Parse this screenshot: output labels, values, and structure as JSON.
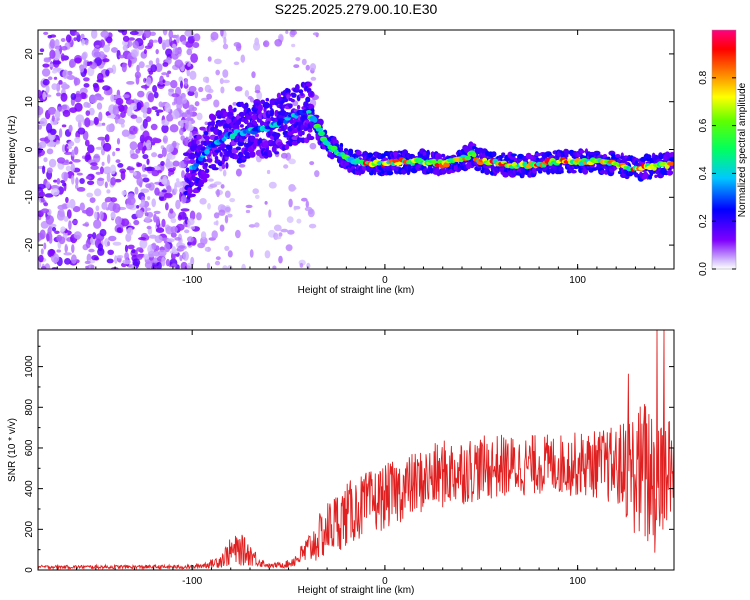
{
  "figure_title": "S225.2025.279.00.10.E30",
  "colormap_label": "Normalized spectral amplitude",
  "chart_data": [
    {
      "type": "heatmap",
      "title": "S225.2025.279.00.10.E30",
      "xlabel": "Height of straight line (km)",
      "ylabel": "Frequency (Hz)",
      "xlim": [
        -180,
        150
      ],
      "ylim": [
        -25,
        25
      ],
      "x_ticks": [
        -100,
        0,
        100
      ],
      "y_ticks": [
        -20,
        -10,
        0,
        10,
        20
      ],
      "colorbar": {
        "label": "Normalized spectral amplitude",
        "range": [
          0.0,
          1.0
        ],
        "ticks": [
          0.0,
          0.2,
          0.4,
          0.6,
          0.8
        ],
        "colors": [
          "#ffffff",
          "#c8b4ff",
          "#8000ff",
          "#0000ff",
          "#00ffff",
          "#00ff00",
          "#ffff00",
          "#ff8000",
          "#ff0000",
          "#ff0080"
        ]
      },
      "ridge": {
        "description_points_x": [
          -100,
          -90,
          -80,
          -70,
          -60,
          -50,
          -40,
          -37,
          -30,
          -20,
          -10,
          0,
          10,
          20,
          30,
          40,
          45,
          50,
          60,
          70,
          80,
          90,
          100,
          110,
          120,
          130,
          140,
          148
        ],
        "description_points_y": [
          -4,
          1,
          3,
          4,
          4.5,
          6.5,
          8,
          6.5,
          1,
          -2,
          -3,
          -3,
          -2.5,
          -2.5,
          -3,
          -2,
          -1,
          -2.5,
          -3,
          -3.5,
          -3,
          -2.5,
          -2.5,
          -2.5,
          -3,
          -4,
          -3.5,
          -3
        ],
        "peak_amplitude": 1.0
      }
    },
    {
      "type": "line",
      "xlabel": "Height of straight line (km)",
      "ylabel": "SNR (10 * v/v)",
      "xlim": [
        -180,
        150
      ],
      "ylim": [
        0,
        1180
      ],
      "x_ticks": [
        -100,
        0,
        100
      ],
      "y_ticks": [
        0,
        200,
        400,
        600,
        800,
        1000
      ],
      "series": [
        {
          "name": "SNR",
          "color": "#e02020",
          "envelope_x": [
            -180,
            -100,
            -90,
            -85,
            -80,
            -75,
            -70,
            -65,
            -60,
            -55,
            -50,
            -45,
            -40,
            -35,
            -30,
            -25,
            -20,
            -15,
            -10,
            -5,
            0,
            10,
            20,
            30,
            40,
            50,
            60,
            70,
            80,
            90,
            100,
            110,
            120,
            125,
            130,
            135,
            140,
            145,
            150
          ],
          "envelope_mean": [
            15,
            15,
            30,
            50,
            90,
            100,
            80,
            40,
            20,
            25,
            30,
            60,
            100,
            150,
            200,
            240,
            270,
            300,
            320,
            340,
            360,
            400,
            440,
            470,
            490,
            500,
            510,
            510,
            520,
            520,
            520,
            520,
            510,
            500,
            480,
            470,
            460,
            480,
            500
          ],
          "envelope_spread": [
            8,
            10,
            20,
            40,
            70,
            80,
            60,
            25,
            10,
            15,
            20,
            40,
            80,
            110,
            140,
            150,
            160,
            160,
            160,
            160,
            160,
            160,
            160,
            170,
            170,
            160,
            160,
            150,
            150,
            150,
            160,
            170,
            200,
            250,
            320,
            380,
            420,
            300,
            250
          ],
          "max_value": 1180
        }
      ]
    }
  ]
}
